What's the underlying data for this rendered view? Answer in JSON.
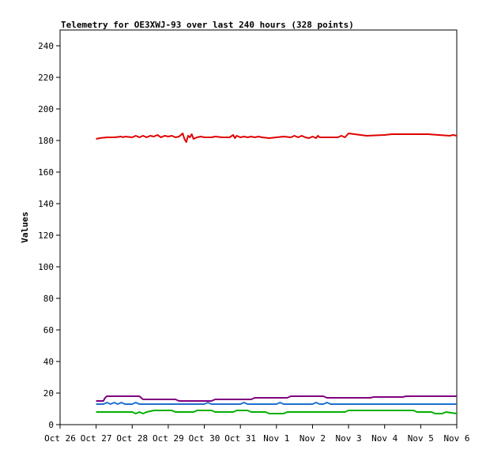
{
  "chart_data": {
    "type": "line",
    "title": "Telemetry for OE3XWJ-93 over last 240 hours (328 points)",
    "xlabel": "",
    "ylabel": "Values",
    "ylim": [
      0,
      250
    ],
    "yticks": [
      0,
      20,
      40,
      60,
      80,
      100,
      120,
      140,
      160,
      180,
      200,
      220,
      240
    ],
    "xticks": [
      "Oct 26",
      "Oct 27",
      "Oct 28",
      "Oct 29",
      "Oct 30",
      "Oct 31",
      "Nov 1",
      "Nov 2",
      "Nov 3",
      "Nov 4",
      "Nov 5",
      "Nov 6"
    ],
    "xlim": [
      0,
      11
    ],
    "grid": false,
    "legend": "none",
    "series": [
      {
        "color": "#e00000",
        "x": [
          1.0,
          1.1,
          1.3,
          1.5,
          1.7,
          1.75,
          1.8,
          2.0,
          2.1,
          2.2,
          2.3,
          2.4,
          2.5,
          2.6,
          2.7,
          2.8,
          2.9,
          3.0,
          3.1,
          3.2,
          3.3,
          3.4,
          3.45,
          3.5,
          3.55,
          3.6,
          3.65,
          3.7,
          3.8,
          3.9,
          4.0,
          4.1,
          4.2,
          4.3,
          4.5,
          4.7,
          4.8,
          4.85,
          4.9,
          5.0,
          5.1,
          5.2,
          5.3,
          5.4,
          5.5,
          5.6,
          5.8,
          6.0,
          6.2,
          6.4,
          6.5,
          6.6,
          6.7,
          6.8,
          6.9,
          7.0,
          7.1,
          7.15,
          7.2,
          7.3,
          7.4,
          7.6,
          7.7,
          7.8,
          7.9,
          8.0,
          8.5,
          9.0,
          9.2,
          9.5,
          10.0,
          10.2,
          10.5,
          10.8,
          10.9,
          11.0
        ],
        "values": [
          181,
          181.5,
          182,
          182,
          182.5,
          182,
          182.5,
          182,
          183,
          182,
          183,
          182,
          183,
          182.5,
          183.5,
          182,
          183,
          182.5,
          183,
          182,
          182.5,
          184.5,
          181,
          179,
          183,
          182,
          184,
          181,
          182,
          182.5,
          182,
          182,
          182,
          182.5,
          182,
          182,
          183.5,
          181.5,
          183,
          182,
          182.5,
          182,
          182.5,
          182,
          182.5,
          182,
          181.5,
          182,
          182.5,
          182,
          183,
          182,
          183,
          182,
          181.5,
          182.5,
          181.5,
          183,
          182,
          182,
          182,
          182,
          182,
          183,
          182,
          184.5,
          183,
          183.5,
          184,
          184,
          184,
          184,
          183.5,
          183,
          183.5,
          183
        ]
      },
      {
        "color": "#800080",
        "x": [
          1.0,
          1.2,
          1.25,
          1.3,
          2.2,
          2.3,
          3.2,
          3.3,
          4.2,
          4.3,
          5.3,
          5.4,
          6.3,
          6.4,
          7.3,
          7.4,
          8.6,
          8.7,
          9.5,
          9.6,
          11.0
        ],
        "values": [
          15,
          15,
          17,
          18,
          18,
          16,
          16,
          15,
          15,
          16,
          16,
          17,
          17,
          18,
          18,
          17,
          17,
          17.5,
          17.5,
          18,
          18
        ]
      },
      {
        "color": "#1f6fd0",
        "x": [
          1.0,
          1.2,
          1.3,
          1.4,
          1.5,
          1.6,
          1.7,
          1.8,
          2.0,
          2.1,
          2.2,
          2.3,
          2.5,
          2.8,
          3.0,
          3.1,
          4.0,
          4.1,
          4.2,
          4.3,
          5.0,
          5.1,
          5.2,
          6.0,
          6.1,
          6.2,
          6.3,
          7.0,
          7.1,
          7.2,
          7.3,
          7.4,
          7.5,
          8.0,
          9.0,
          10.0,
          11.0
        ],
        "values": [
          13,
          13,
          14,
          13,
          14,
          13,
          14,
          13,
          13,
          14,
          13,
          13,
          13,
          13,
          13,
          13,
          13,
          14,
          13,
          13,
          13,
          14,
          13,
          13,
          14,
          13,
          13,
          13,
          14,
          13,
          13,
          14,
          13,
          13,
          13,
          13,
          13
        ]
      },
      {
        "color": "#00b000",
        "x": [
          1.0,
          2.0,
          2.1,
          2.2,
          2.3,
          2.4,
          2.6,
          3.1,
          3.2,
          3.7,
          3.8,
          4.2,
          4.3,
          4.8,
          4.9,
          5.2,
          5.3,
          5.7,
          5.8,
          6.2,
          6.3,
          6.7,
          6.8,
          7.9,
          8.0,
          9.8,
          9.9,
          10.3,
          10.4,
          10.6,
          10.7,
          11.0
        ],
        "values": [
          8,
          8,
          7,
          8,
          7,
          8,
          9,
          9,
          8,
          8,
          9,
          9,
          8,
          8,
          9,
          9,
          8,
          8,
          7,
          7,
          8,
          8,
          8,
          8,
          9,
          9,
          8,
          8,
          7,
          7,
          8,
          7
        ]
      }
    ]
  }
}
